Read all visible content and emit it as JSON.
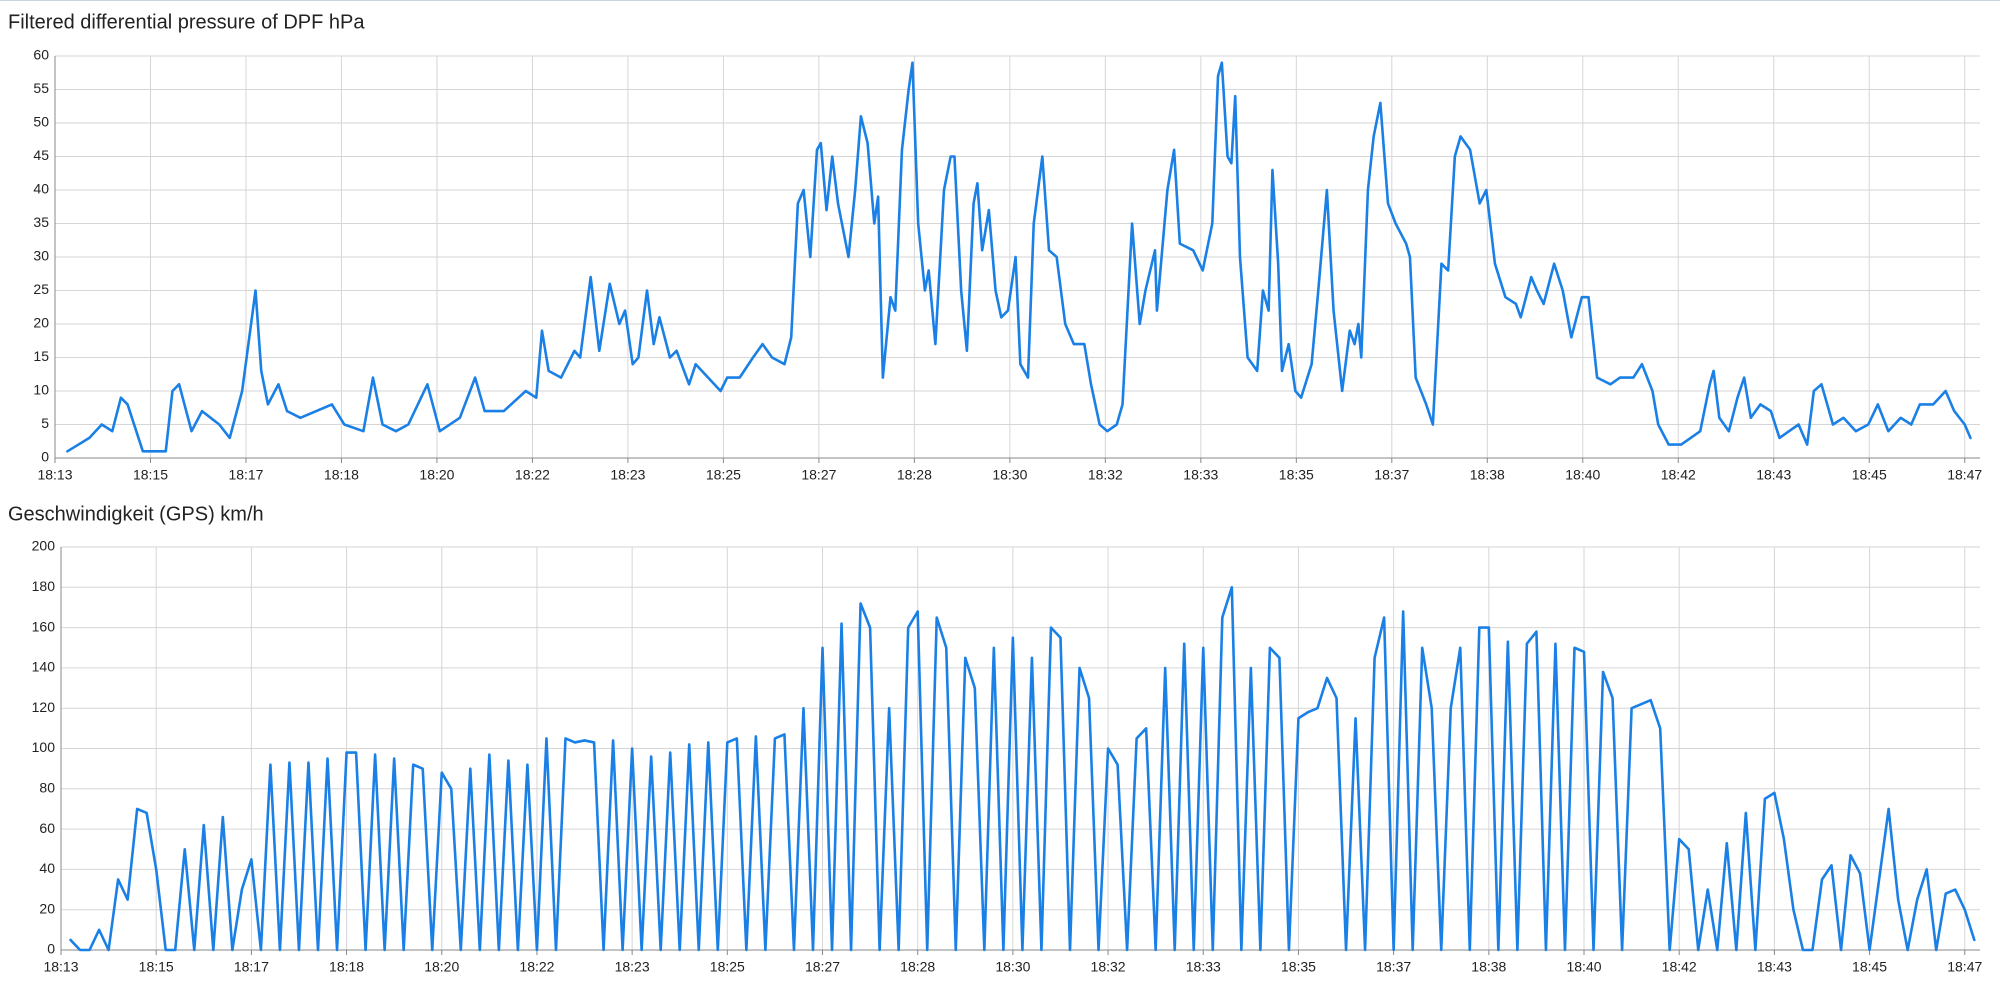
{
  "chart_data": [
    {
      "type": "line",
      "title": "Filtered differential pressure of DPF  hPa",
      "color": "#1a80e6",
      "grid": true,
      "xlim": [
        65600,
        67616
      ],
      "ylim": [
        0,
        60
      ],
      "yticks": [
        0,
        5,
        10,
        15,
        20,
        25,
        30,
        35,
        40,
        45,
        50,
        55,
        60
      ],
      "xticks": [
        {
          "value": 65600,
          "label": "18:13"
        },
        {
          "value": 65700,
          "label": "18:15"
        },
        {
          "value": 65800,
          "label": "18:17"
        },
        {
          "value": 65900,
          "label": "18:18"
        },
        {
          "value": 66000,
          "label": "18:20"
        },
        {
          "value": 66100,
          "label": "18:22"
        },
        {
          "value": 66200,
          "label": "18:23"
        },
        {
          "value": 66300,
          "label": "18:25"
        },
        {
          "value": 66400,
          "label": "18:27"
        },
        {
          "value": 66500,
          "label": "18:28"
        },
        {
          "value": 66600,
          "label": "18:30"
        },
        {
          "value": 66700,
          "label": "18:32"
        },
        {
          "value": 66800,
          "label": "18:33"
        },
        {
          "value": 66900,
          "label": "18:35"
        },
        {
          "value": 67000,
          "label": "18:37"
        },
        {
          "value": 67100,
          "label": "18:38"
        },
        {
          "value": 67200,
          "label": "18:40"
        },
        {
          "value": 67300,
          "label": "18:42"
        },
        {
          "value": 67400,
          "label": "18:43"
        },
        {
          "value": 67500,
          "label": "18:45"
        },
        {
          "value": 67600,
          "label": "18:47"
        }
      ],
      "x": [
        65613,
        65636,
        65649,
        65660,
        65669,
        65676,
        65692,
        65716,
        65723,
        65730,
        65743,
        65754,
        65763,
        65772,
        65783,
        65796,
        65810,
        65816,
        65823,
        65834,
        65843,
        65857,
        65890,
        65903,
        65923,
        65933,
        65943,
        65957,
        65970,
        65990,
        66003,
        66024,
        66040,
        66050,
        66070,
        66093,
        66104,
        66110,
        66117,
        66130,
        66144,
        66150,
        66161,
        66170,
        66181,
        66191,
        66197,
        66205,
        66211,
        66220,
        66227,
        66233,
        66244,
        66251,
        66264,
        66271,
        66284,
        66297,
        66304,
        66317,
        66331,
        66341,
        66351,
        66364,
        66371,
        66378,
        66384,
        66391,
        66398,
        66402,
        66408,
        66414,
        66420,
        66431,
        66438,
        66444,
        66451,
        66458,
        66462,
        66467,
        66475,
        66480,
        66487,
        66494,
        66498,
        66504,
        66511,
        66515,
        66522,
        66531,
        66538,
        66542,
        66549,
        66555,
        66562,
        66566,
        66571,
        66578,
        66585,
        66591,
        66598,
        66606,
        66611,
        66619,
        66625,
        66634,
        66641,
        66649,
        66658,
        66667,
        66678,
        66685,
        66694,
        66702,
        66712,
        66718,
        66728,
        66736,
        66742,
        66752,
        66754,
        66765,
        66772,
        66778,
        66792,
        66802,
        66812,
        66818,
        66822,
        66828,
        66832,
        66836,
        66841,
        66849,
        66859,
        66865,
        66871,
        66875,
        66881,
        66885,
        66892,
        66899,
        66905,
        66916,
        66923,
        66932,
        66939,
        66948,
        66956,
        66961,
        66965,
        66968,
        66975,
        66981,
        66988,
        66996,
        67004,
        67015,
        67019,
        67025,
        67036,
        67043,
        67052,
        67059,
        67066,
        67072,
        67082,
        67092,
        67099,
        67108,
        67119,
        67130,
        67135,
        67146,
        67152,
        67159,
        67170,
        67179,
        67188,
        67199,
        67206,
        67215,
        67229,
        67239,
        67253,
        67262,
        67273,
        67279,
        67290,
        67303,
        67313,
        67323,
        67333,
        67337,
        67343,
        67353,
        67362,
        67369,
        67376,
        67386,
        67397,
        67406,
        67416,
        67426,
        67435,
        67442,
        67450,
        67462,
        67473,
        67486,
        67499,
        67509,
        67520,
        67533,
        67544,
        67553,
        67567,
        67580,
        67589,
        67600,
        67606
      ],
      "values": [
        1,
        3,
        5,
        4,
        9,
        8,
        1,
        1,
        10,
        11,
        4,
        7,
        6,
        5,
        3,
        10,
        25,
        13,
        8,
        11,
        7,
        6,
        8,
        5,
        4,
        12,
        5,
        4,
        5,
        11,
        4,
        6,
        12,
        7,
        7,
        10,
        9,
        19,
        13,
        12,
        16,
        15,
        27,
        16,
        26,
        20,
        22,
        14,
        15,
        25,
        17,
        21,
        15,
        16,
        11,
        14,
        12,
        10,
        12,
        12,
        15,
        17,
        15,
        14,
        18,
        38,
        40,
        30,
        46,
        47,
        37,
        45,
        38,
        30,
        40,
        51,
        47,
        35,
        39,
        12,
        24,
        22,
        46,
        55,
        59,
        35,
        25,
        28,
        17,
        40,
        45,
        45,
        25,
        16,
        38,
        41,
        31,
        37,
        25,
        21,
        22,
        30,
        14,
        12,
        35,
        45,
        31,
        30,
        20,
        17,
        17,
        11,
        5,
        4,
        5,
        8,
        35,
        20,
        25,
        31,
        22,
        40,
        46,
        32,
        31,
        28,
        35,
        57,
        59,
        45,
        44,
        54,
        30,
        15,
        13,
        25,
        22,
        43,
        29,
        13,
        17,
        10,
        9,
        14,
        25,
        40,
        22,
        10,
        19,
        17,
        20,
        15,
        40,
        48,
        53,
        38,
        35,
        32,
        30,
        12,
        8,
        5,
        29,
        28,
        45,
        48,
        46,
        38,
        40,
        29,
        24,
        23,
        21,
        27,
        25,
        23,
        29,
        25,
        18,
        24,
        24,
        12,
        11,
        12,
        12,
        14,
        10,
        5,
        2,
        2,
        3,
        4,
        11,
        13,
        6,
        4,
        9,
        12,
        6,
        8,
        7,
        3,
        4,
        5,
        2,
        10,
        11,
        5,
        6,
        4,
        5,
        8,
        4,
        6,
        5,
        8,
        8,
        10,
        7,
        5,
        3
      ]
    },
    {
      "type": "line",
      "title": "Geschwindigkeit (GPS)  km/h",
      "color": "#1a80e6",
      "grid": true,
      "xlim": [
        65600,
        67616
      ],
      "ylim": [
        0,
        200
      ],
      "yticks": [
        0,
        20,
        40,
        60,
        80,
        100,
        120,
        140,
        160,
        180,
        200
      ],
      "xticks": [
        {
          "value": 65600,
          "label": "18:13"
        },
        {
          "value": 65700,
          "label": "18:15"
        },
        {
          "value": 65800,
          "label": "18:17"
        },
        {
          "value": 65900,
          "label": "18:18"
        },
        {
          "value": 66000,
          "label": "18:20"
        },
        {
          "value": 66100,
          "label": "18:22"
        },
        {
          "value": 66200,
          "label": "18:23"
        },
        {
          "value": 66300,
          "label": "18:25"
        },
        {
          "value": 66400,
          "label": "18:27"
        },
        {
          "value": 66500,
          "label": "18:28"
        },
        {
          "value": 66600,
          "label": "18:30"
        },
        {
          "value": 66700,
          "label": "18:32"
        },
        {
          "value": 66800,
          "label": "18:33"
        },
        {
          "value": 66900,
          "label": "18:35"
        },
        {
          "value": 67000,
          "label": "18:37"
        },
        {
          "value": 67100,
          "label": "18:38"
        },
        {
          "value": 67200,
          "label": "18:40"
        },
        {
          "value": 67300,
          "label": "18:42"
        },
        {
          "value": 67400,
          "label": "18:43"
        },
        {
          "value": 67500,
          "label": "18:45"
        },
        {
          "value": 67600,
          "label": "18:47"
        }
      ],
      "x": [
        65610,
        65620,
        65630,
        65640,
        65650,
        65660,
        65670,
        65680,
        65690,
        65700,
        65710,
        65720,
        65730,
        65740,
        65750,
        65760,
        65770,
        65780,
        65790,
        65800,
        65810,
        65820,
        65830,
        65840,
        65850,
        65860,
        65870,
        65880,
        65890,
        65900,
        65910,
        65920,
        65930,
        65940,
        65950,
        65960,
        65970,
        65980,
        65990,
        66000,
        66010,
        66020,
        66030,
        66040,
        66050,
        66060,
        66070,
        66080,
        66090,
        66100,
        66110,
        66120,
        66130,
        66140,
        66150,
        66160,
        66170,
        66180,
        66190,
        66200,
        66210,
        66220,
        66230,
        66240,
        66250,
        66260,
        66270,
        66280,
        66290,
        66300,
        66310,
        66320,
        66330,
        66340,
        66350,
        66360,
        66370,
        66380,
        66390,
        66400,
        66410,
        66420,
        66430,
        66440,
        66450,
        66460,
        66470,
        66480,
        66490,
        66500,
        66510,
        66520,
        66530,
        66540,
        66550,
        66560,
        66570,
        66580,
        66590,
        66600,
        66610,
        66620,
        66630,
        66640,
        66650,
        66660,
        66670,
        66680,
        66690,
        66700,
        66710,
        66720,
        66730,
        66740,
        66750,
        66760,
        66770,
        66780,
        66790,
        66800,
        66810,
        66820,
        66830,
        66840,
        66850,
        66860,
        66870,
        66880,
        66890,
        66900,
        66910,
        66920,
        66930,
        66940,
        66950,
        66960,
        66970,
        66980,
        66990,
        67000,
        67010,
        67020,
        67030,
        67040,
        67050,
        67060,
        67070,
        67080,
        67090,
        67100,
        67110,
        67120,
        67130,
        67140,
        67150,
        67160,
        67170,
        67180,
        67190,
        67200,
        67210,
        67220,
        67230,
        67240,
        67250,
        67260,
        67270,
        67280,
        67290,
        67300,
        67310,
        67320,
        67330,
        67340,
        67350,
        67360,
        67370,
        67380,
        67390,
        67400,
        67410,
        67420,
        67430,
        67440,
        67450,
        67460,
        67470,
        67480,
        67490,
        67500,
        67510,
        67520,
        67530,
        67540,
        67550,
        67560,
        67570,
        67580,
        67590,
        67600,
        67610
      ],
      "values": [
        5,
        0,
        0,
        10,
        0,
        35,
        25,
        70,
        68,
        40,
        0,
        0,
        50,
        0,
        62,
        0,
        66,
        0,
        30,
        45,
        0,
        92,
        0,
        93,
        0,
        93,
        0,
        95,
        0,
        98,
        98,
        0,
        97,
        0,
        95,
        0,
        92,
        90,
        0,
        88,
        80,
        0,
        90,
        0,
        97,
        0,
        94,
        0,
        92,
        0,
        105,
        0,
        105,
        103,
        104,
        103,
        0,
        104,
        0,
        100,
        0,
        96,
        0,
        98,
        0,
        102,
        0,
        103,
        0,
        103,
        105,
        0,
        106,
        0,
        105,
        107,
        0,
        120,
        0,
        150,
        0,
        162,
        0,
        172,
        160,
        0,
        120,
        0,
        160,
        168,
        0,
        165,
        150,
        0,
        145,
        130,
        0,
        150,
        0,
        155,
        0,
        145,
        0,
        160,
        155,
        0,
        140,
        125,
        0,
        100,
        92,
        0,
        105,
        110,
        0,
        140,
        0,
        152,
        0,
        150,
        0,
        165,
        180,
        0,
        140,
        0,
        150,
        145,
        0,
        115,
        118,
        120,
        135,
        125,
        0,
        115,
        0,
        145,
        165,
        0,
        168,
        0,
        150,
        120,
        0,
        120,
        150,
        0,
        160,
        160,
        0,
        153,
        0,
        152,
        158,
        0,
        152,
        0,
        150,
        148,
        0,
        138,
        125,
        0,
        120,
        122,
        124,
        110,
        0,
        55,
        50,
        0,
        30,
        0,
        53,
        0,
        68,
        0,
        75,
        78,
        55,
        20,
        0,
        0,
        35,
        42,
        0,
        47,
        38,
        0,
        35,
        70,
        25,
        0,
        25,
        40,
        0,
        28,
        30,
        20,
        5
      ]
    }
  ]
}
